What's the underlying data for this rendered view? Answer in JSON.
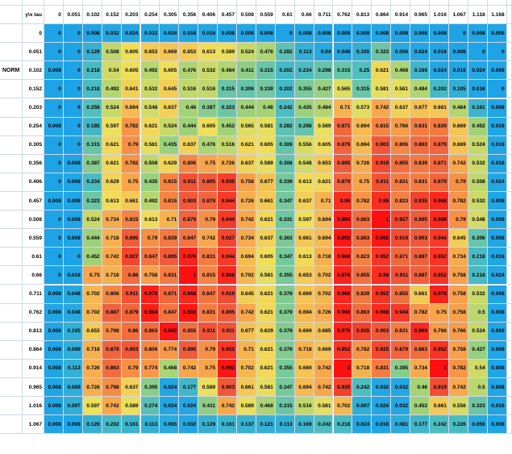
{
  "table": {
    "corner": "y\\x tau",
    "columns": [
      0,
      0.051,
      0.102,
      0.152,
      0.203,
      0.254,
      0.305,
      0.356,
      0.406,
      0.457,
      0.508,
      0.559,
      0.61,
      0.66,
      0.711,
      0.762,
      0.813,
      0.864,
      0.914,
      0.965,
      1.016,
      1.067,
      1.118,
      1.168
    ],
    "rows": [
      {
        "y": 0,
        "cells": [
          0,
          0,
          0.008,
          0.032,
          0.024,
          0.032,
          0.024,
          0.016,
          0.016,
          0.008,
          0.008,
          0.008,
          0,
          0.008,
          0.008,
          0.008,
          0.008,
          0.008,
          0.008,
          0.008,
          0.008,
          0,
          0.008,
          0.008
        ]
      },
      {
        "y": 0.051,
        "cells": [
          0,
          0,
          0.129,
          0.508,
          0.605,
          0.653,
          0.669,
          0.653,
          0.613,
          0.589,
          0.524,
          0.476,
          0.282,
          0.113,
          0.04,
          0.048,
          0.105,
          0.323,
          0.056,
          0.024,
          0.016,
          0.008,
          0,
          0
        ]
      },
      {
        "y": 0.102,
        "note": "NORM",
        "cells": [
          0.008,
          0,
          0.218,
          0.54,
          0.605,
          0.492,
          0.605,
          0.476,
          0.532,
          0.484,
          0.411,
          0.315,
          0.202,
          0.234,
          0.298,
          0.315,
          0.25,
          0.621,
          0.468,
          0.169,
          0.024,
          0.016,
          0.024,
          0.008
        ]
      },
      {
        "y": 0.152,
        "cells": [
          0,
          0,
          0.218,
          0.492,
          0.641,
          0.532,
          0.645,
          0.516,
          0.516,
          0.315,
          0.306,
          0.339,
          0.202,
          0.355,
          0.427,
          0.565,
          0.315,
          0.581,
          0.581,
          0.484,
          0.202,
          0.105,
          0.016,
          0
        ]
      },
      {
        "y": 0.203,
        "cells": [
          0,
          0,
          0.258,
          0.524,
          0.694,
          0.548,
          0.637,
          0.46,
          0.387,
          0.323,
          0.444,
          0.46,
          0.242,
          0.435,
          0.484,
          0.71,
          0.573,
          0.742,
          0.637,
          0.677,
          0.661,
          0.484,
          0.161,
          0.008
        ]
      },
      {
        "y": 0.254,
        "cells": [
          0.008,
          0,
          0.185,
          0.597,
          0.782,
          0.621,
          0.524,
          0.444,
          0.605,
          0.452,
          0.565,
          0.581,
          0.282,
          0.298,
          0.589,
          0.871,
          0.694,
          0.815,
          0.766,
          0.831,
          0.839,
          0.669,
          0.452,
          0.016
        ]
      },
      {
        "y": 0.305,
        "cells": [
          0,
          0,
          0.315,
          0.621,
          0.79,
          0.581,
          0.435,
          0.637,
          0.476,
          0.516,
          0.621,
          0.605,
          0.306,
          0.556,
          0.605,
          0.879,
          0.694,
          0.903,
          0.806,
          0.863,
          0.879,
          0.669,
          0.524,
          0.016
        ]
      },
      {
        "y": 0.356,
        "cells": [
          0,
          0.008,
          0.387,
          0.621,
          0.782,
          0.508,
          0.629,
          0.806,
          0.75,
          0.726,
          0.637,
          0.589,
          0.306,
          0.548,
          0.653,
          0.895,
          0.726,
          0.919,
          0.855,
          0.839,
          0.871,
          0.742,
          0.532,
          0.016
        ]
      },
      {
        "y": 0.406,
        "cells": [
          0,
          0.008,
          0.234,
          0.629,
          0.75,
          0.435,
          0.815,
          0.911,
          0.895,
          0.935,
          0.758,
          0.677,
          0.339,
          0.613,
          0.621,
          0.879,
          0.75,
          0.911,
          0.831,
          0.831,
          0.879,
          0.79,
          0.508,
          0.024
        ]
      },
      {
        "y": 0.457,
        "cells": [
          0.008,
          0.008,
          0.323,
          0.613,
          0.661,
          0.492,
          0.815,
          0.903,
          0.879,
          0.944,
          0.726,
          0.661,
          0.347,
          0.637,
          0.71,
          0.96,
          0.782,
          0.96,
          0.823,
          0.935,
          0.968,
          0.782,
          0.532,
          0.008
        ]
      },
      {
        "y": 0.508,
        "cells": [
          0,
          0.008,
          0.524,
          0.734,
          0.815,
          0.613,
          0.71,
          0.879,
          0.79,
          0.944,
          0.742,
          0.621,
          0.331,
          0.597,
          0.694,
          0.984,
          0.863,
          1,
          0.927,
          0.895,
          0.968,
          0.79,
          0.548,
          0.008
        ]
      },
      {
        "y": 0.559,
        "cells": [
          0,
          0.008,
          0.444,
          0.718,
          0.895,
          0.79,
          0.839,
          0.847,
          0.742,
          0.927,
          0.734,
          0.637,
          0.363,
          0.661,
          0.694,
          0.992,
          0.863,
          0.992,
          0.919,
          0.903,
          0.944,
          0.645,
          0.306,
          0.008
        ]
      },
      {
        "y": 0.61,
        "cells": [
          0,
          0,
          0.452,
          0.742,
          0.927,
          0.847,
          0.895,
          0.976,
          0.831,
          0.944,
          0.694,
          0.605,
          0.347,
          0.613,
          0.718,
          0.968,
          0.823,
          0.952,
          0.871,
          0.887,
          0.952,
          0.734,
          0.218,
          0.016
        ]
      },
      {
        "y": 0.66,
        "cells": [
          0,
          0.016,
          0.75,
          0.718,
          0.86,
          0.758,
          0.831,
          1,
          0.815,
          0.968,
          0.702,
          0.581,
          0.355,
          0.653,
          0.702,
          0.976,
          0.855,
          0.96,
          0.911,
          0.887,
          0.952,
          0.758,
          0.218,
          0.024
        ]
      },
      {
        "y": 0.711,
        "cells": [
          0.008,
          0.048,
          0.702,
          0.806,
          0.911,
          0.976,
          0.871,
          0.968,
          0.847,
          0.919,
          0.645,
          0.621,
          0.379,
          0.669,
          0.702,
          0.968,
          0.839,
          0.952,
          0.855,
          0.661,
          0.976,
          0.758,
          0.532,
          0.008
        ]
      },
      {
        "y": 0.762,
        "cells": [
          0.008,
          0.048,
          0.702,
          0.887,
          0.879,
          0.984,
          0.847,
          0.992,
          0.831,
          0.895,
          0.742,
          0.621,
          0.379,
          0.694,
          0.726,
          0.968,
          0.863,
          0.968,
          0.944,
          0.782,
          0.75,
          0.758,
          0.5,
          0.008
        ]
      },
      {
        "y": 0.813,
        "cells": [
          0.008,
          0.105,
          0.653,
          0.798,
          0.86,
          0.863,
          0.992,
          0.855,
          0.911,
          0.911,
          0.677,
          0.629,
          0.379,
          0.669,
          0.685,
          0.976,
          0.935,
          0.903,
          0.831,
          0.968,
          0.766,
          0.766,
          0.524,
          0.008
        ]
      },
      {
        "y": 0.864,
        "cells": [
          0.008,
          0.089,
          0.718,
          0.879,
          0.903,
          0.806,
          0.774,
          0.895,
          0.79,
          0.952,
          0.71,
          0.621,
          0.379,
          0.718,
          0.669,
          0.952,
          0.782,
          0.925,
          0.879,
          0.863,
          0.952,
          0.758,
          0.427,
          0.008
        ]
      },
      {
        "y": 0.914,
        "cells": [
          0.008,
          0.113,
          0.726,
          0.863,
          0.79,
          0.774,
          0.468,
          0.742,
          0.75,
          0.992,
          0.702,
          0.621,
          0.355,
          0.669,
          0.742,
          1,
          0.718,
          0.831,
          0.395,
          0.734,
          1,
          0.782,
          0.54,
          0.008
        ]
      },
      {
        "y": 0.965,
        "cells": [
          0.008,
          0.089,
          0.726,
          0.798,
          0.637,
          0.395,
          0.024,
          0.177,
          0.589,
          0.903,
          0.661,
          0.581,
          0.347,
          0.694,
          0.742,
          0.935,
          0.242,
          0.032,
          0.032,
          0.46,
          0.919,
          0.742,
          0.5,
          0.008
        ]
      },
      {
        "y": 1.016,
        "cells": [
          0.008,
          0.097,
          0.597,
          0.742,
          0.589,
          0.274,
          0.024,
          0.024,
          0.411,
          0.742,
          0.589,
          0.468,
          0.315,
          0.516,
          0.581,
          0.702,
          0.097,
          0.024,
          0.032,
          0.452,
          0.661,
          0.556,
          0.323,
          0.016
        ]
      },
      {
        "y": 1.067,
        "cells": [
          0.008,
          0.008,
          0.129,
          0.202,
          0.161,
          0.113,
          0.065,
          0.032,
          0.129,
          0.161,
          0.137,
          0.121,
          0.113,
          0.169,
          0.242,
          0.218,
          0.024,
          0.016,
          0.081,
          0.177,
          0.242,
          0.226,
          0.056,
          0.008
        ]
      }
    ]
  }
}
